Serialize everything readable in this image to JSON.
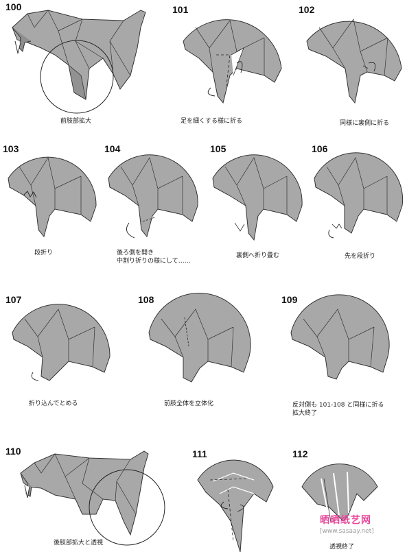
{
  "steps": [
    {
      "num": "100",
      "caption": "前肢部拡大"
    },
    {
      "num": "101",
      "caption": "足を細くする様に折る"
    },
    {
      "num": "102",
      "caption": "同様に裏側に折る"
    },
    {
      "num": "103",
      "caption": "段折り"
    },
    {
      "num": "104",
      "caption_lines": [
        "後ろ側を開き",
        "中割り折りの様にして……"
      ]
    },
    {
      "num": "105",
      "caption": "裏側へ折り畳む"
    },
    {
      "num": "106",
      "caption": "先を段折り"
    },
    {
      "num": "107",
      "caption": "折り込んでとめる"
    },
    {
      "num": "108",
      "caption": "前肢全体を立体化"
    },
    {
      "num": "109",
      "caption_lines": [
        "反対側も 101-108 と同様に折る",
        "拡大終了"
      ]
    },
    {
      "num": "110",
      "caption": "後肢部拡大と透視"
    },
    {
      "num": "111",
      "caption": ""
    },
    {
      "num": "112",
      "caption": "透視終了"
    }
  ],
  "watermark": {
    "text": "晒晒纸艺网",
    "url": "[www.sasaay.net]"
  },
  "colors": {
    "paper_gray": "#a8a8a8",
    "paper_dark": "#7e7e7e",
    "line": "#333333",
    "watermark_pink": "#e8479a"
  }
}
